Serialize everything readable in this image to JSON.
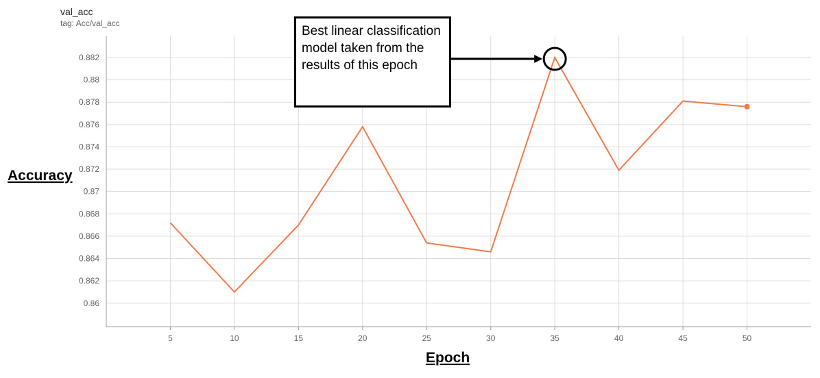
{
  "chart_data": {
    "type": "line",
    "title": "val_acc",
    "subtitle": "tag: Acc/val_acc",
    "xlabel": "Epoch",
    "ylabel": "Accuracy",
    "x": [
      5,
      10,
      15,
      20,
      25,
      30,
      35,
      40,
      45,
      50
    ],
    "series": [
      {
        "values": [
          0.8672,
          0.861,
          0.867,
          0.8758,
          0.8654,
          0.8646,
          0.882,
          0.8719,
          0.8781,
          0.8776
        ]
      }
    ],
    "xlim": [
      0,
      55
    ],
    "ylim": [
      0.8579,
      0.8839
    ],
    "xticks": [
      5,
      10,
      15,
      20,
      25,
      30,
      35,
      40,
      45,
      50
    ],
    "yticks": [
      0.86,
      0.862,
      0.864,
      0.866,
      0.868,
      0.87,
      0.872,
      0.874,
      0.876,
      0.878,
      0.88,
      0.882
    ],
    "ytick_labels": [
      "0.86",
      "0.862",
      "0.864",
      "0.866",
      "0.868",
      "0.87",
      "0.872",
      "0.874",
      "0.876",
      "0.878",
      "0.88",
      "0.882"
    ],
    "grid": true,
    "colors": {
      "line": "#f07a4a",
      "grid": "#dcdcdc",
      "axis": "#9e9e9e"
    },
    "annotation": {
      "text": "Best linear classification model taken from the results of this epoch",
      "target_x": 35,
      "target_y": 0.882
    }
  }
}
